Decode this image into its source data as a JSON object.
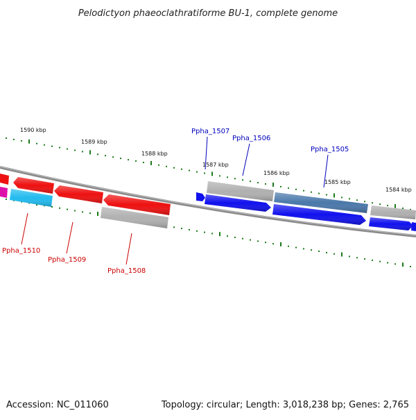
{
  "title": "Pelodictyon phaeoclathratiforme BU-1, complete genome",
  "footer": {
    "accession": "Accession: NC_011060",
    "summary": "Topology: circular; Length: 3,018,238 bp; Genes: 2,765"
  },
  "scale_labels": [
    "1590 kbp",
    "1589 kbp",
    "1588 kbp",
    "1587 kbp",
    "1586 kbp",
    "1585 kbp",
    "1584 kbp"
  ],
  "gene_labels": [
    {
      "text": "Ppha_1507",
      "strand": "forward"
    },
    {
      "text": "Ppha_1506",
      "strand": "forward"
    },
    {
      "text": "Ppha_1505",
      "strand": "forward"
    },
    {
      "text": "Ppha_1510",
      "strand": "reverse"
    },
    {
      "text": "Ppha_1509",
      "strand": "reverse"
    },
    {
      "text": "Ppha_1508",
      "strand": "reverse"
    }
  ],
  "colors": {
    "forward_label": "#0000bb",
    "reverse_label": "#cc0000",
    "ticks": "#1a7a1a",
    "backbone": "#808080",
    "red_gene": "#ee1111",
    "blue_gene": "#1111ee",
    "grey_gene": "#b0b0b0",
    "steel_gene": "#4a78aa",
    "cyan_gene": "#22bbee",
    "magenta_gene": "#dd11aa"
  }
}
